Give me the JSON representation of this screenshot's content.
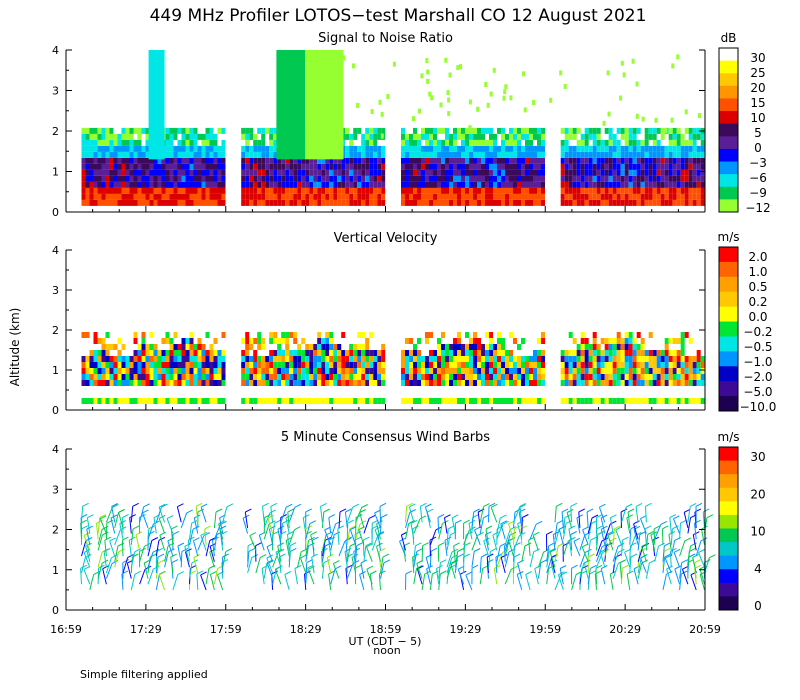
{
  "figure": {
    "title": "449 MHz Profiler LOTOS−test Marshall CO 12 August 2021",
    "ylabel": "Altitude (km)",
    "xlabel": "UT  (CDT − 5)",
    "noon_label": "noon",
    "footnote": "Simple filtering applied",
    "x_ticks": [
      "16:59",
      "17:29",
      "17:59",
      "18:29",
      "18:59",
      "19:29",
      "19:59",
      "20:29",
      "20:59"
    ]
  },
  "chart_data": [
    {
      "type": "heatmap",
      "title": "Signal to Noise Ratio",
      "x_range_hours": [
        16.983,
        20.983
      ],
      "ylim": [
        0,
        4
      ],
      "y_ticks": [
        "0",
        "1",
        "2",
        "3",
        "4"
      ],
      "colorbar": {
        "unit": "dB",
        "labels": [
          "30",
          "25",
          "20",
          "15",
          "10",
          "5",
          "0",
          "−3",
          "−6",
          "−9",
          "−12"
        ],
        "colors": [
          "#ffffff",
          "#ffff00",
          "#ffc800",
          "#ff9600",
          "#ff5000",
          "#dc0000",
          "#3c0a5a",
          "#5a1e96",
          "#0000ff",
          "#0096ff",
          "#00e6e6",
          "#00c850",
          "#96ff32"
        ]
      },
      "data_segments_hours": [
        [
          17.08,
          17.98
        ],
        [
          18.08,
          18.97
        ],
        [
          19.08,
          19.98
        ],
        [
          20.08,
          20.98
        ]
      ]
    },
    {
      "type": "heatmap",
      "title": "Vertical Velocity",
      "x_range_hours": [
        16.983,
        20.983
      ],
      "ylim": [
        0,
        4
      ],
      "y_ticks": [
        "0",
        "1",
        "2",
        "3",
        "4"
      ],
      "colorbar": {
        "unit": "m/s",
        "labels": [
          "2.0",
          "1.0",
          "0.5",
          "0.2",
          "0.0",
          "−0.2",
          "−0.5",
          "−1.0",
          "−2.0",
          "−5.0",
          "−10.0"
        ],
        "colors": [
          "#ff0000",
          "#ff6400",
          "#ffa000",
          "#ffc800",
          "#ffff00",
          "#00e632",
          "#00e6e6",
          "#0096ff",
          "#0000c8",
          "#3c0a96",
          "#1e0050"
        ]
      },
      "data_segments_hours": [
        [
          17.08,
          17.98
        ],
        [
          18.08,
          18.97
        ],
        [
          19.08,
          19.98
        ],
        [
          20.08,
          20.98
        ]
      ]
    },
    {
      "type": "scatter",
      "title": "5 Minute Consensus Wind Barbs",
      "x_range_hours": [
        16.983,
        20.983
      ],
      "ylim": [
        0,
        4
      ],
      "y_ticks": [
        "0",
        "1",
        "2",
        "3",
        "4"
      ],
      "colorbar": {
        "unit": "m/s",
        "labels": [
          "30",
          "20",
          "10",
          "4",
          "0"
        ],
        "colors": [
          "#ff0000",
          "#ff6400",
          "#ffa000",
          "#ffc800",
          "#ffff00",
          "#96e600",
          "#00c850",
          "#00c8c8",
          "#0096ff",
          "#0000ff",
          "#3c0a96",
          "#1e0050"
        ]
      }
    }
  ]
}
